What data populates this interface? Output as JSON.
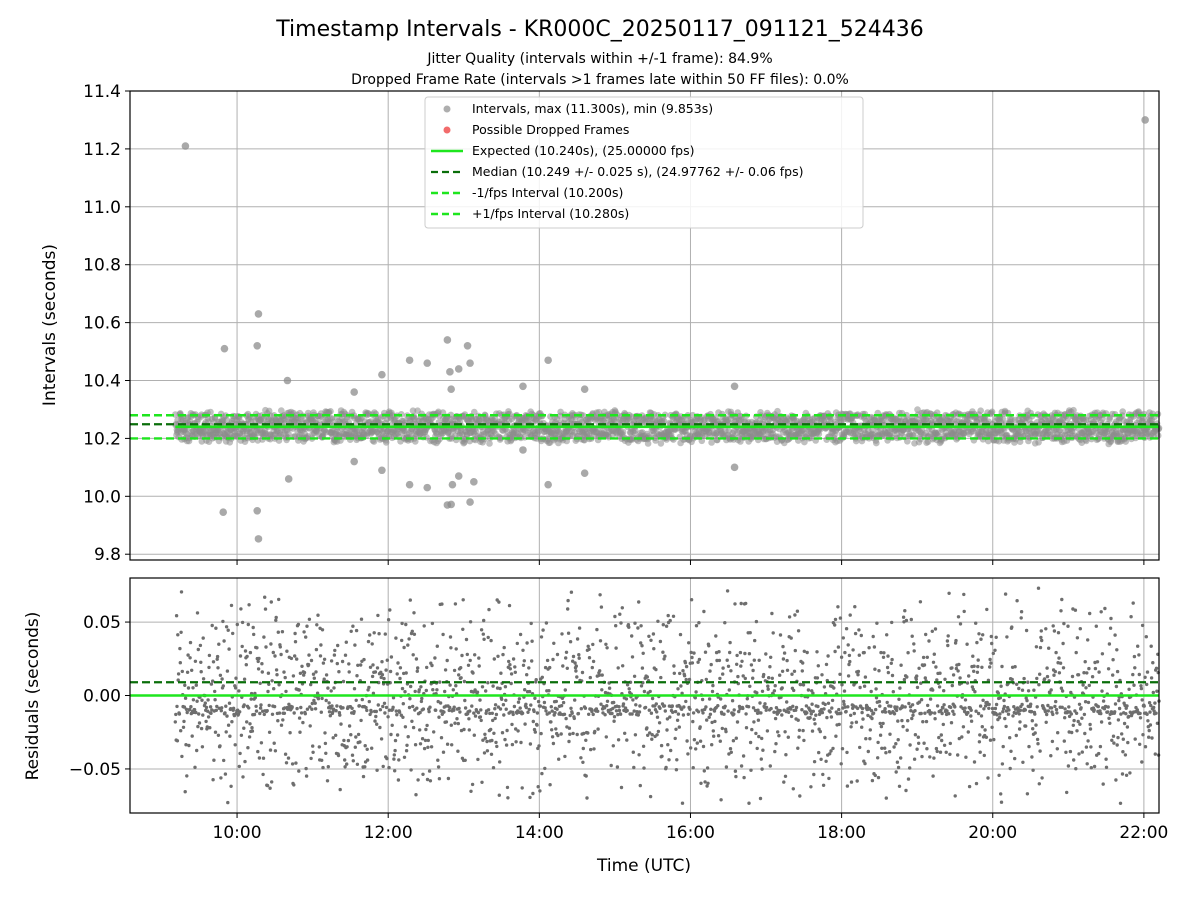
{
  "figure": {
    "title": "Timestamp Intervals - KR000C_20250117_091121_524436",
    "subtitle_1": "Jitter Quality (intervals within +/-1 frame): 84.9%",
    "subtitle_2": "Dropped Frame Rate (intervals >1 frames late within 50 FF files): 0.0%"
  },
  "colors": {
    "points": "#8c8c8c",
    "dropped": "#f26b6b",
    "expected": "#1ee61e",
    "median": "#0a6e0a",
    "fps_band": "#1ee61e",
    "residuals": "#6e6e6e",
    "grid": "#b0b0b0"
  },
  "chart_data": [
    {
      "type": "scatter",
      "ylabel": "Intervals (seconds)",
      "xlim": [
        "08:35",
        "22:12"
      ],
      "ylim": [
        9.78,
        11.4
      ],
      "x_ticks": [
        "10:00",
        "12:00",
        "14:00",
        "16:00",
        "18:00",
        "20:00",
        "22:00"
      ],
      "y_ticks": [
        "9.8",
        "10.0",
        "10.2",
        "10.4",
        "10.6",
        "10.8",
        "11.0",
        "11.2",
        "11.4"
      ],
      "grid": true,
      "legend_position": "top-center",
      "legend": [
        {
          "label": "Intervals, max (11.300s), min (9.853s)",
          "kind": "points"
        },
        {
          "label": "Possible Dropped Frames",
          "kind": "dropped"
        },
        {
          "label": "Expected (10.240s), (25.00000 fps)",
          "kind": "solid"
        },
        {
          "label": "Median (10.249 +/- 0.025 s), (24.97762 +/- 0.06 fps)",
          "kind": "median"
        },
        {
          "label": "-1/fps Interval (10.200s)",
          "kind": "dashed"
        },
        {
          "label": "+1/fps Interval (10.280s)",
          "kind": "dashed"
        }
      ],
      "reference_lines": {
        "expected": 10.24,
        "median": 10.249,
        "minus_fps": 10.2,
        "plus_fps": 10.28
      },
      "time_range": [
        "09:11",
        "22:12"
      ],
      "band": {
        "center": 10.24,
        "spread": 0.06
      },
      "outliers": [
        {
          "x": "09:19",
          "y": 11.21
        },
        {
          "x": "09:50",
          "y": 10.51
        },
        {
          "x": "09:49",
          "y": 9.945
        },
        {
          "x": "10:16",
          "y": 10.52
        },
        {
          "x": "10:17",
          "y": 10.63
        },
        {
          "x": "10:16",
          "y": 9.95
        },
        {
          "x": "10:17",
          "y": 9.853
        },
        {
          "x": "10:40",
          "y": 10.4
        },
        {
          "x": "10:41",
          "y": 10.06
        },
        {
          "x": "11:33",
          "y": 10.36
        },
        {
          "x": "11:33",
          "y": 10.12
        },
        {
          "x": "11:55",
          "y": 10.42
        },
        {
          "x": "11:55",
          "y": 10.09
        },
        {
          "x": "12:17",
          "y": 10.47
        },
        {
          "x": "12:17",
          "y": 10.04
        },
        {
          "x": "12:31",
          "y": 10.46
        },
        {
          "x": "12:31",
          "y": 10.03
        },
        {
          "x": "12:47",
          "y": 10.54
        },
        {
          "x": "12:49",
          "y": 10.43
        },
        {
          "x": "12:50",
          "y": 10.37
        },
        {
          "x": "12:47",
          "y": 9.97
        },
        {
          "x": "12:50",
          "y": 9.972
        },
        {
          "x": "12:51",
          "y": 10.04
        },
        {
          "x": "12:56",
          "y": 10.44
        },
        {
          "x": "12:56",
          "y": 10.07
        },
        {
          "x": "13:03",
          "y": 10.52
        },
        {
          "x": "13:05",
          "y": 10.46
        },
        {
          "x": "13:05",
          "y": 9.98
        },
        {
          "x": "13:08",
          "y": 10.05
        },
        {
          "x": "13:47",
          "y": 10.38
        },
        {
          "x": "13:47",
          "y": 10.16
        },
        {
          "x": "14:07",
          "y": 10.47
        },
        {
          "x": "14:07",
          "y": 10.04
        },
        {
          "x": "14:36",
          "y": 10.37
        },
        {
          "x": "14:36",
          "y": 10.08
        },
        {
          "x": "16:35",
          "y": 10.38
        },
        {
          "x": "16:35",
          "y": 10.1
        },
        {
          "x": "22:01",
          "y": 11.3
        }
      ]
    },
    {
      "type": "scatter",
      "xlabel": "Time (UTC)",
      "ylabel": "Residuals (seconds)",
      "xlim": [
        "08:35",
        "22:12"
      ],
      "ylim": [
        -0.08,
        0.08
      ],
      "x_ticks": [
        "10:00",
        "12:00",
        "14:00",
        "16:00",
        "18:00",
        "20:00",
        "22:00"
      ],
      "y_ticks": [
        "−0.05",
        "0.00",
        "0.05"
      ],
      "grid": true,
      "reference_lines": {
        "expected": 0.0,
        "median": 0.009
      },
      "time_range": [
        "09:11",
        "22:12"
      ],
      "spread": 0.075
    }
  ]
}
